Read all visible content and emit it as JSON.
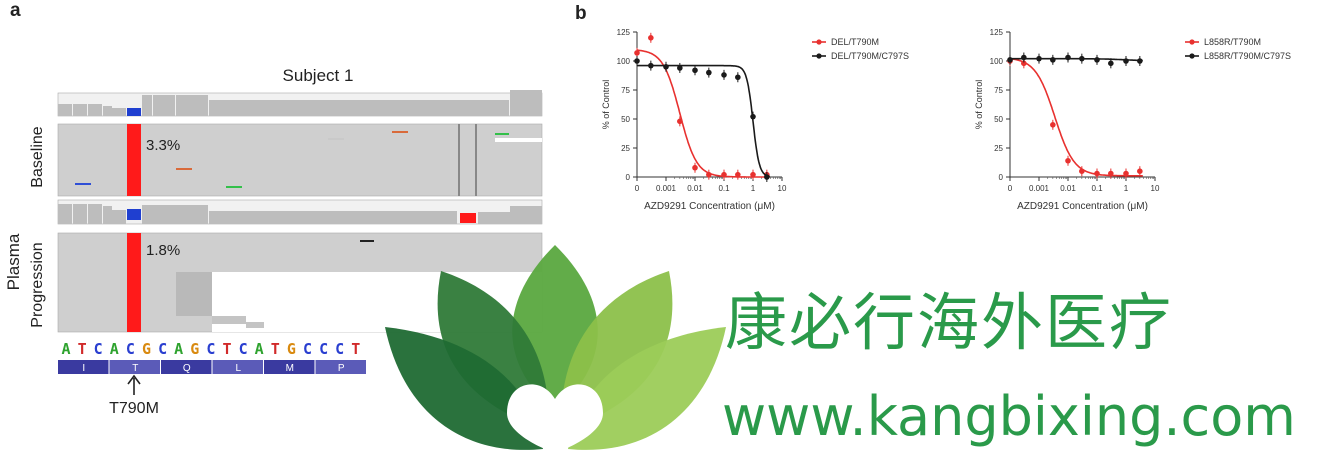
{
  "panels": {
    "a_label": "a",
    "b_label": "b"
  },
  "igv": {
    "subject_title": "Subject 1",
    "group_label": "Plasma",
    "track_baseline_label": "Baseline",
    "track_progression_label": "Progression",
    "baseline_af": "3.3%",
    "progression_af": "1.8%",
    "sequence": [
      "A",
      "T",
      "C",
      "A",
      "C",
      "G",
      "C",
      "A",
      "G",
      "C",
      "T",
      "C",
      "A",
      "T",
      "G",
      "C",
      "C",
      "C",
      "T"
    ],
    "amino_acids": [
      "I",
      "T",
      "Q",
      "L",
      "M",
      "P"
    ],
    "mutation_label": "T790M",
    "colors": {
      "mutation": "#ff1a1a",
      "reference": "#1f3fd0",
      "read": "#c8c8c8",
      "codon": "#3a3aa0"
    }
  },
  "chart_data": [
    {
      "type": "line",
      "xscale": "log",
      "xlabel": "AZD9291 Concentration (μM)",
      "ylabel": "% of Control",
      "x_ticks": [
        "0",
        "0.001",
        "0.01",
        "0.1",
        "1",
        "10"
      ],
      "y_ticks": [
        0,
        25,
        50,
        75,
        100,
        125
      ],
      "ylim": [
        0,
        125
      ],
      "legend_position": "top-right",
      "series": [
        {
          "name": "DEL/T790M",
          "color": "#e8312f",
          "points": [
            [
              0,
              107
            ],
            [
              0.0003,
              120
            ],
            [
              0.003,
              48
            ],
            [
              0.01,
              8
            ],
            [
              0.03,
              2
            ],
            [
              0.1,
              2
            ],
            [
              0.3,
              2
            ],
            [
              1,
              2
            ],
            [
              3,
              2
            ]
          ],
          "fit": {
            "top": 110,
            "bottom": 0,
            "ec50": 0.003,
            "hill": 1.5
          }
        },
        {
          "name": "DEL/T790M/C797S",
          "color": "#1a1a1a",
          "points": [
            [
              0,
              100
            ],
            [
              0.0003,
              96
            ],
            [
              0.001,
              95
            ],
            [
              0.003,
              94
            ],
            [
              0.01,
              92
            ],
            [
              0.03,
              90
            ],
            [
              0.1,
              88
            ],
            [
              0.3,
              86
            ],
            [
              1,
              52
            ],
            [
              3,
              0
            ]
          ],
          "fit": {
            "top": 96,
            "bottom": 0,
            "ec50": 1,
            "hill": 4
          }
        }
      ]
    },
    {
      "type": "line",
      "xscale": "log",
      "xlabel": "AZD9291 Concentration (μM)",
      "ylabel": "% of Control",
      "x_ticks": [
        "0",
        "0.001",
        "0.01",
        "0.1",
        "1",
        "10"
      ],
      "y_ticks": [
        0,
        25,
        50,
        75,
        100,
        125
      ],
      "ylim": [
        0,
        125
      ],
      "legend_position": "top-right",
      "series": [
        {
          "name": "L858R/T790M",
          "color": "#e8312f",
          "points": [
            [
              0,
              100
            ],
            [
              0.0003,
              98
            ],
            [
              0.003,
              45
            ],
            [
              0.01,
              14
            ],
            [
              0.03,
              5
            ],
            [
              0.1,
              3
            ],
            [
              0.3,
              3
            ],
            [
              1,
              3
            ],
            [
              3,
              5
            ]
          ],
          "fit": {
            "top": 103,
            "bottom": 1,
            "ec50": 0.0035,
            "hill": 1.3
          }
        },
        {
          "name": "L858R/T790M/C797S",
          "color": "#1a1a1a",
          "points": [
            [
              0,
              101
            ],
            [
              0.0003,
              103
            ],
            [
              0.001,
              102
            ],
            [
              0.003,
              101
            ],
            [
              0.01,
              103
            ],
            [
              0.03,
              102
            ],
            [
              0.1,
              101
            ],
            [
              0.3,
              98
            ],
            [
              1,
              100
            ],
            [
              3,
              100
            ]
          ],
          "fit": {
            "top": 102,
            "bottom": 100,
            "ec50": 1,
            "hill": 1
          }
        }
      ]
    }
  ],
  "watermark": {
    "cn_text": "康必行海外医疗",
    "url_text": "www.kangbixing.com",
    "colors": {
      "dark": "#1f6a33",
      "mid": "#3e9a3f",
      "light": "#8cc04a"
    }
  }
}
